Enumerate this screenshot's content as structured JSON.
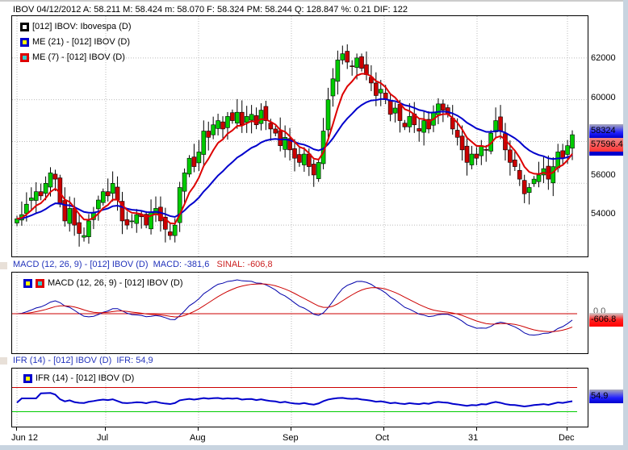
{
  "header": {
    "text": "IBOV   04/12/2012  A: 58.211   M: 58.424   m: 58.070   F: 58.324  PM: 58.244  Q: 128.847  %: 0.21 DIF: 122"
  },
  "price_panel": {
    "legend": [
      "[012] IBOV: Ibovespa (D)",
      "ME (21)  - [012] IBOV (D)",
      "ME (7)  - [012] IBOV (D)"
    ],
    "y_ticks": [
      "62000",
      "60000",
      "56000",
      "54000"
    ],
    "last_price_tag": "58324",
    "ma_tag": "57596.4",
    "colors": {
      "up": "#00cc00",
      "down": "#cc0000",
      "ma21": "#0000cc",
      "ma7": "#dd0000"
    }
  },
  "macd_panel": {
    "title": "MACD (12, 26, 9)  - [012] IBOV (D)",
    "title_macd": "MACD: -381,6",
    "title_sinal": "SINAL: -606,8",
    "legend": "MACD (12, 26, 9)  - [012] IBOV (D)",
    "zero_label": "0.0",
    "tag": "-606.8"
  },
  "ifr_panel": {
    "title": "IFR (14)  - [012] IBOV (D)",
    "title_value": "IFR: 54,9",
    "legend": "IFR (14)  - [012] IBOV (D)",
    "tag": "54.9",
    "upper": 70,
    "lower": 30
  },
  "x_labels": [
    "Jun 12",
    "Jul",
    "Aug",
    "Sep",
    "Oct",
    "31",
    "Dec"
  ],
  "chart_data": {
    "type": "candlestick",
    "closes": [
      54300,
      54500,
      55000,
      55300,
      55600,
      55400,
      56000,
      56500,
      56200,
      55000,
      54200,
      54800,
      54000,
      53600,
      53500,
      54200,
      54600,
      55200,
      55600,
      55400,
      56000,
      55200,
      54200,
      54000,
      54200,
      54500,
      54400,
      54000,
      54600,
      54800,
      54200,
      53800,
      53500,
      54000,
      55800,
      56500,
      57200,
      56800,
      57500,
      58500,
      58200,
      58800,
      59000,
      58600,
      59200,
      59000,
      59400,
      58800,
      59200,
      59300,
      58800,
      59500,
      59000,
      58600,
      58400,
      57800,
      58200,
      57600,
      57200,
      57000,
      57400,
      56800,
      56400,
      57000,
      58500,
      60000,
      61000,
      61900,
      62200,
      61800,
      61600,
      62000,
      61500,
      61200,
      60800,
      60200,
      60500,
      60000,
      59300,
      59600,
      59000,
      58700,
      59200,
      58800,
      58500,
      59000,
      58600,
      59400,
      59800,
      59500,
      59300,
      58600,
      58200,
      57600,
      57000,
      57400,
      57200,
      57800,
      57600,
      58400,
      59000,
      58500,
      57600,
      57000,
      56800,
      56200,
      55500,
      55800,
      56200,
      56400,
      56700,
      56200,
      56800,
      57500,
      57200,
      57800,
      58324
    ],
    "ylim": [
      52500,
      64000
    ]
  }
}
